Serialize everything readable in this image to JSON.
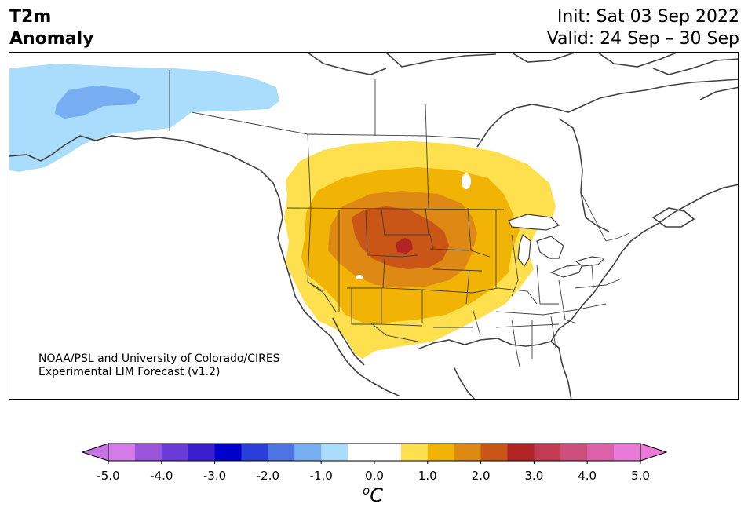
{
  "header": {
    "title_line1": "T2m",
    "title_line2": "Anomaly",
    "init": "Init: Sat 03 Sep 2022",
    "valid": "Valid: 24 Sep – 30 Sep"
  },
  "credit": {
    "line1": "NOAA/PSL and University of Colorado/CIRES",
    "line2": "Experimental LIM Forecast (v1.2)"
  },
  "colorbar": {
    "unit_symbol": "o",
    "unit_letter": "C",
    "ticks": [
      "-5.0",
      "-4.0",
      "-3.0",
      "-2.0",
      "-1.0",
      "0.0",
      "1.0",
      "2.0",
      "3.0",
      "4.0",
      "5.0"
    ],
    "colors": [
      "#d57ae9",
      "#9a55dc",
      "#6b3bd8",
      "#3b1fcf",
      "#0000cd",
      "#2a3fd9",
      "#4d74e2",
      "#76aef1",
      "#aadcfb",
      "#ffffff",
      "#ffffff",
      "#fee04e",
      "#f1b405",
      "#de8913",
      "#c95617",
      "#b02424",
      "#c23b52",
      "#cf4f7c",
      "#dd62a9",
      "#ea7ad8"
    ],
    "under_color": "#c873e6",
    "over_color": "#e87ad6"
  },
  "legend_colors": {
    "light_blue": "#aadcfb",
    "mid_blue": "#76aef1",
    "yellow": "#fee04e",
    "gold": "#f1b405",
    "orange": "#de8913",
    "dark_orange": "#c95617",
    "red": "#b02424"
  }
}
